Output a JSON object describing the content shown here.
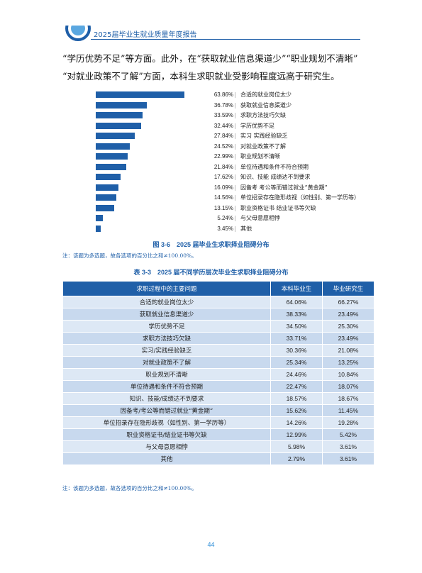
{
  "header": {
    "title": "2025届毕业生就业质量年度报告"
  },
  "paragraph": [
    "“学历优势不足”等方面。此外，在“获取就业信息渠道少”“职业规划不清晰”",
    "“对就业政策不了解”方面，本科生求职就业受影响程度远高于研究生。"
  ],
  "chart_data": {
    "type": "bar",
    "orientation": "horizontal",
    "categories": [
      "合适的就业岗位太少",
      "获取就业信息渠道少",
      "求职方法技巧欠缺",
      "学历优势不足",
      "实习 实践经验缺乏",
      "对就业政策不了解",
      "职业规划不清晰",
      "单位待遇和条件不符合预期",
      "知识、技能 成绩达不到要求",
      "因备考 考公等而错过就业“黄金期”",
      "单位招录存在隐形歧视（如性别、第一学历等）",
      "职业资格证书 结业证书等欠缺",
      "与父母意愿相悖",
      "其他"
    ],
    "values": [
      63.86,
      36.78,
      33.59,
      32.44,
      27.84,
      24.52,
      22.99,
      21.84,
      17.62,
      16.09,
      14.56,
      13.15,
      5.24,
      3.45
    ],
    "labels": [
      "63.86%",
      "36.78%",
      "33.59%",
      "32.44%",
      "27.84%",
      "24.52%",
      "22.99%",
      "21.84%",
      "17.62%",
      "16.09%",
      "14.56%",
      "13.15%",
      "5.24%",
      "3.45%"
    ],
    "xlim": [
      0,
      100
    ],
    "bar_color": "#1f5fa8"
  },
  "figure": {
    "caption": "图 3-6　2025 届毕业生求职择业阻碍分布",
    "note": "注：该题为多选题，故各选项的百分比之和≠100.00%。"
  },
  "table": {
    "caption": "表 3-3　2025 届不同学历层次毕业生求职择业阻碍分布",
    "headers": [
      "求职过程中的主要问题",
      "本科毕业生",
      "毕业研究生"
    ],
    "rows": [
      [
        "合适的就业岗位太少",
        "64.06%",
        "66.27%"
      ],
      [
        "获取就业信息渠道少",
        "38.33%",
        "23.49%"
      ],
      [
        "学历优势不足",
        "34.50%",
        "25.30%"
      ],
      [
        "求职方法技巧欠缺",
        "33.71%",
        "23.49%"
      ],
      [
        "实习/实践经验缺乏",
        "30.36%",
        "21.08%"
      ],
      [
        "对就业政策不了解",
        "25.34%",
        "13.25%"
      ],
      [
        "职业规划不清晰",
        "24.46%",
        "10.84%"
      ],
      [
        "单位待遇和条件不符合预期",
        "22.47%",
        "18.07%"
      ],
      [
        "知识、技能/成绩达不到要求",
        "18.57%",
        "18.67%"
      ],
      [
        "因备考/考公等而错过就业“黄金期”",
        "15.62%",
        "11.45%"
      ],
      [
        "单位招录存在隐形歧视（如性别、第一学历等）",
        "14.26%",
        "19.28%"
      ],
      [
        "职业资格证书/结业证书等欠缺",
        "12.99%",
        "5.42%"
      ],
      [
        "与父母意愿相悖",
        "5.98%",
        "3.61%"
      ],
      [
        "其他",
        "2.79%",
        "3.61%"
      ]
    ],
    "note": "注：该题为多选题，故各选项的百分比之和≠100.00%。"
  },
  "page_number": "44",
  "colors": {
    "accent": "#1f5fa8",
    "row_light": "#dde8f5",
    "row_dark": "#c8d9ee"
  }
}
